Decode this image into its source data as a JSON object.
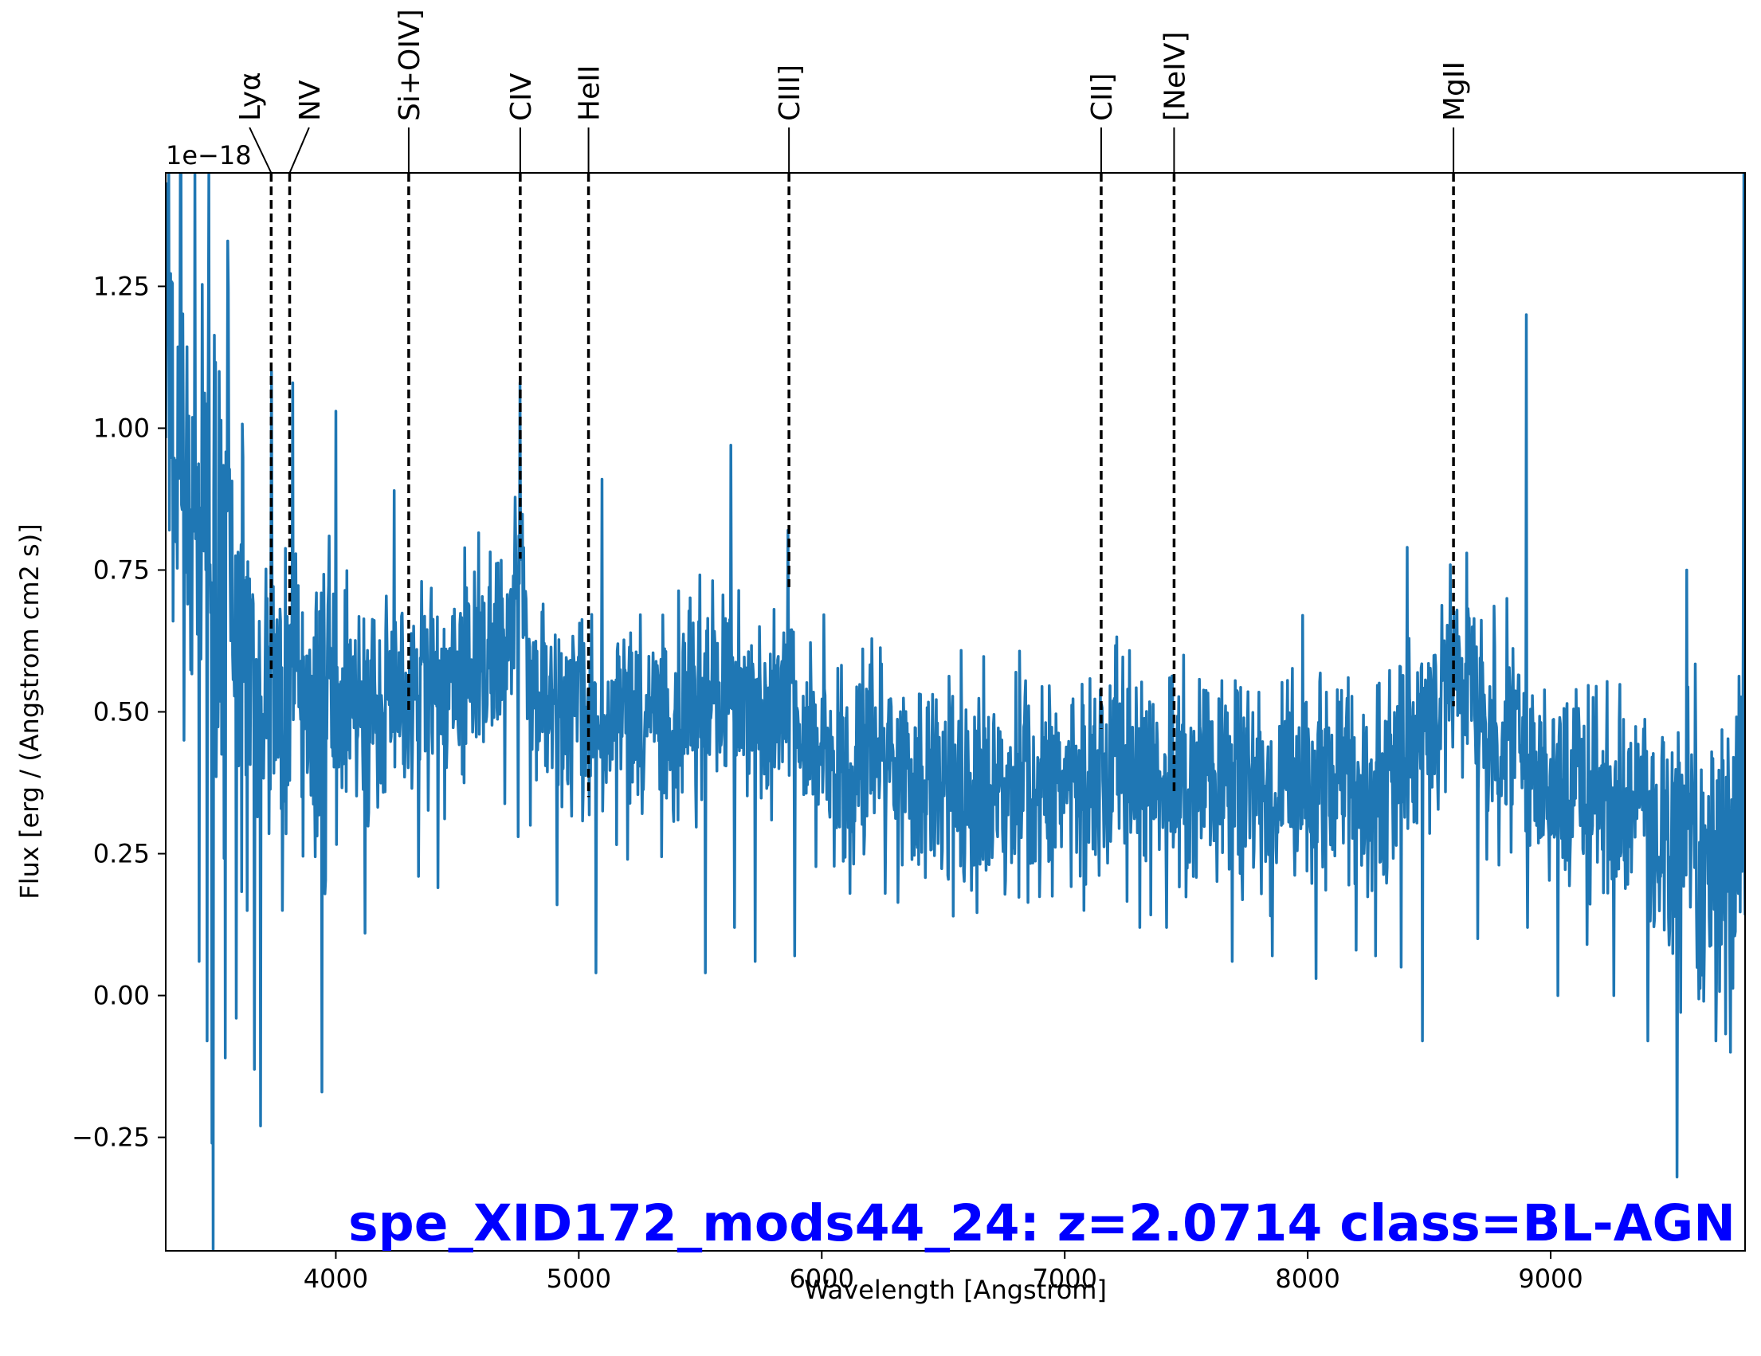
{
  "chart_data": {
    "type": "line",
    "title": "",
    "xlabel": "Wavelength [Angstrom]",
    "ylabel": "Flux [erg / (Angstrom cm2 s)]",
    "y_offset_text": "1e−18",
    "xlim": [
      3300,
      9800
    ],
    "ylim": [
      -0.45,
      1.45
    ],
    "x_ticks": [
      4000,
      5000,
      6000,
      7000,
      8000,
      9000
    ],
    "x_tick_labels": [
      "4000",
      "5000",
      "6000",
      "7000",
      "8000",
      "9000"
    ],
    "y_ticks": [
      -0.25,
      0.0,
      0.25,
      0.5,
      0.75,
      1.0,
      1.25
    ],
    "y_tick_labels": [
      "−0.25",
      "0.00",
      "0.25",
      "0.50",
      "0.75",
      "1.00",
      "1.25"
    ],
    "grid": false,
    "line_color": "#1f77b4",
    "annotation_color": "#0000ff",
    "annotation": "spe_XID172_mods44_24: z=2.0714 class=BL-AGN",
    "emission_lines": [
      {
        "label": "Lyα",
        "x": 3734,
        "label_x": 3645,
        "y_bottom": 0.56
      },
      {
        "label": "NV",
        "x": 3810,
        "label_x": 3890,
        "y_bottom": 0.67
      },
      {
        "label": "Si+OIV]",
        "x": 4300,
        "label_x": 4300,
        "y_bottom": 0.5
      },
      {
        "label": "CIV",
        "x": 4759,
        "label_x": 4759,
        "y_bottom": 0.77
      },
      {
        "label": "HeII",
        "x": 5040,
        "label_x": 5040,
        "y_bottom": 0.35
      },
      {
        "label": "CIII]",
        "x": 5865,
        "label_x": 5865,
        "y_bottom": 0.72
      },
      {
        "label": "CII]",
        "x": 7150,
        "label_x": 7150,
        "y_bottom": 0.47
      },
      {
        "label": "[NeIV]",
        "x": 7450,
        "label_x": 7450,
        "y_bottom": 0.36
      },
      {
        "label": "MgII",
        "x": 8600,
        "label_x": 8600,
        "y_bottom": 0.51
      }
    ],
    "series_anchor": {
      "x": [
        3300,
        3350,
        3400,
        3450,
        3500,
        3550,
        3600,
        3700,
        3800,
        3900,
        4000,
        4100,
        4200,
        4300,
        4400,
        4500,
        4600,
        4700,
        4760,
        4800,
        4900,
        5000,
        5100,
        5200,
        5300,
        5400,
        5500,
        5600,
        5700,
        5800,
        5865,
        5900,
        6000,
        6100,
        6200,
        6300,
        6400,
        6500,
        6600,
        6700,
        6800,
        6900,
        7000,
        7100,
        7200,
        7300,
        7400,
        7500,
        7600,
        7700,
        7800,
        7900,
        8000,
        8100,
        8200,
        8300,
        8400,
        8500,
        8600,
        8650,
        8700,
        8800,
        8900,
        9000,
        9100,
        9200,
        9300,
        9400,
        9500,
        9600,
        9700,
        9800
      ],
      "y": [
        1.15,
        1.05,
        0.95,
        0.9,
        0.8,
        0.7,
        0.6,
        0.55,
        0.52,
        0.5,
        0.5,
        0.52,
        0.52,
        0.52,
        0.53,
        0.55,
        0.57,
        0.6,
        0.75,
        0.6,
        0.52,
        0.48,
        0.48,
        0.48,
        0.48,
        0.5,
        0.52,
        0.54,
        0.52,
        0.5,
        0.55,
        0.45,
        0.44,
        0.42,
        0.42,
        0.4,
        0.38,
        0.37,
        0.36,
        0.36,
        0.35,
        0.36,
        0.37,
        0.38,
        0.39,
        0.38,
        0.37,
        0.37,
        0.38,
        0.38,
        0.38,
        0.38,
        0.37,
        0.36,
        0.36,
        0.38,
        0.42,
        0.48,
        0.55,
        0.56,
        0.5,
        0.45,
        0.42,
        0.38,
        0.36,
        0.36,
        0.34,
        0.3,
        0.28,
        0.25,
        0.22,
        0.35
      ]
    },
    "series_spikes": [
      {
        "x": 3312,
        "y": 1.45
      },
      {
        "x": 3330,
        "y": 0.66
      },
      {
        "x": 3360,
        "y": 1.45
      },
      {
        "x": 3375,
        "y": 0.45
      },
      {
        "x": 3420,
        "y": 1.45
      },
      {
        "x": 3438,
        "y": 0.06
      },
      {
        "x": 3470,
        "y": -0.08
      },
      {
        "x": 3478,
        "y": 1.45
      },
      {
        "x": 3490,
        "y": -0.26
      },
      {
        "x": 3496,
        "y": -0.45
      },
      {
        "x": 3520,
        "y": 1.1
      },
      {
        "x": 3545,
        "y": -0.11
      },
      {
        "x": 3555,
        "y": 1.33
      },
      {
        "x": 3590,
        "y": -0.04
      },
      {
        "x": 3665,
        "y": -0.13
      },
      {
        "x": 3690,
        "y": -0.23
      },
      {
        "x": 3734,
        "y": 1.1
      },
      {
        "x": 3780,
        "y": 0.15
      },
      {
        "x": 3823,
        "y": 1.08
      },
      {
        "x": 3860,
        "y": 0.35
      },
      {
        "x": 3943,
        "y": -0.17
      },
      {
        "x": 4000,
        "y": 1.03
      },
      {
        "x": 4120,
        "y": 0.11
      },
      {
        "x": 4240,
        "y": 0.89
      },
      {
        "x": 4340,
        "y": 0.21
      },
      {
        "x": 4420,
        "y": 0.19
      },
      {
        "x": 4650,
        "y": 0.49
      },
      {
        "x": 4750,
        "y": 0.28
      },
      {
        "x": 4758,
        "y": 1.08
      },
      {
        "x": 4800,
        "y": 0.3
      },
      {
        "x": 4910,
        "y": 0.16
      },
      {
        "x": 5070,
        "y": 0.04
      },
      {
        "x": 5095,
        "y": 0.91
      },
      {
        "x": 5200,
        "y": 0.24
      },
      {
        "x": 5520,
        "y": 0.04
      },
      {
        "x": 5625,
        "y": 0.97
      },
      {
        "x": 5640,
        "y": 0.12
      },
      {
        "x": 5725,
        "y": 0.06
      },
      {
        "x": 5860,
        "y": 0.82
      },
      {
        "x": 5888,
        "y": 0.07
      },
      {
        "x": 6115,
        "y": 0.18
      },
      {
        "x": 6260,
        "y": 0.18
      },
      {
        "x": 6540,
        "y": 0.14
      },
      {
        "x": 6800,
        "y": 0.57
      },
      {
        "x": 7080,
        "y": 0.15
      },
      {
        "x": 7310,
        "y": 0.12
      },
      {
        "x": 7420,
        "y": 0.12
      },
      {
        "x": 7490,
        "y": 0.6
      },
      {
        "x": 7690,
        "y": 0.06
      },
      {
        "x": 7855,
        "y": 0.07
      },
      {
        "x": 7980,
        "y": 0.67
      },
      {
        "x": 8035,
        "y": 0.03
      },
      {
        "x": 8200,
        "y": 0.08
      },
      {
        "x": 8280,
        "y": 0.07
      },
      {
        "x": 8385,
        "y": 0.05
      },
      {
        "x": 8410,
        "y": 0.79
      },
      {
        "x": 8472,
        "y": -0.08
      },
      {
        "x": 8525,
        "y": 0.6
      },
      {
        "x": 8595,
        "y": 0.52
      },
      {
        "x": 8655,
        "y": 0.78
      },
      {
        "x": 8700,
        "y": 0.1
      },
      {
        "x": 8820,
        "y": 0.7
      },
      {
        "x": 8897,
        "y": 0.29
      },
      {
        "x": 8900,
        "y": 1.2
      },
      {
        "x": 8905,
        "y": 0.12
      },
      {
        "x": 9030,
        "y": 0.0
      },
      {
        "x": 9150,
        "y": 0.09
      },
      {
        "x": 9260,
        "y": 0.0
      },
      {
        "x": 9400,
        "y": -0.08
      },
      {
        "x": 9450,
        "y": 0.21
      },
      {
        "x": 9520,
        "y": -0.32
      },
      {
        "x": 9560,
        "y": 0.75
      },
      {
        "x": 9630,
        "y": -0.01
      },
      {
        "x": 9680,
        "y": -0.08
      },
      {
        "x": 9740,
        "y": -0.1
      },
      {
        "x": 9795,
        "y": 1.45
      }
    ],
    "noise_amplitude": 0.13,
    "n_points": 2600
  }
}
